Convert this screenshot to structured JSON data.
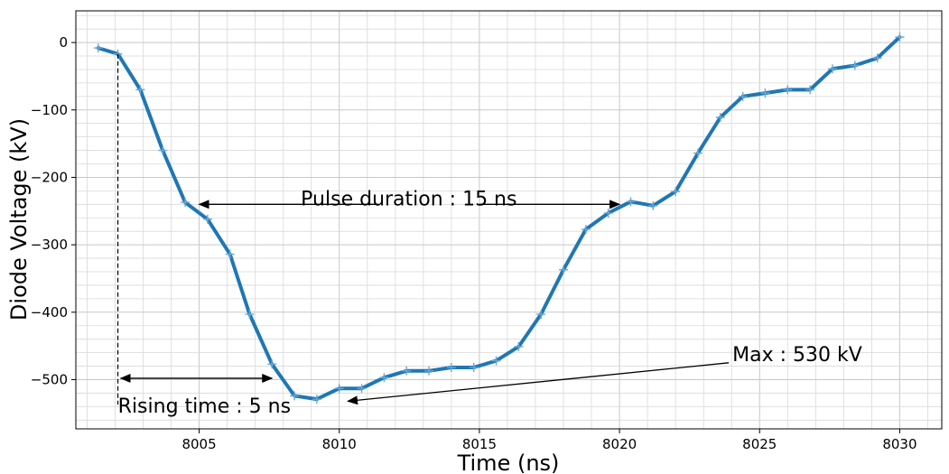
{
  "chart_data": {
    "type": "line",
    "title": "",
    "xlabel": "Time (ns)",
    "ylabel": "Diode Voltage (kV)",
    "xlim": [
      8000.6,
      8031.5
    ],
    "ylim": [
      -573,
      47
    ],
    "xticks": [
      8005,
      8010,
      8015,
      8020,
      8025,
      8030
    ],
    "yticks": [
      0,
      -100,
      -200,
      -300,
      -400,
      -500
    ],
    "grid": true,
    "series_color": "#1f77b4",
    "series": [
      {
        "x": [
          8001.4,
          8002.1,
          8002.9,
          8003.7,
          8004.5,
          8005.3,
          8006.1,
          8006.8,
          8007.6,
          8008.4,
          8009.2,
          8010.0,
          8010.8,
          8011.6,
          8012.4,
          8013.2,
          8014.0,
          8014.8,
          8015.6,
          8016.4,
          8017.2,
          8018.0,
          8018.8,
          8019.6,
          8020.4,
          8021.2,
          8022.0,
          8022.8,
          8023.6,
          8024.4,
          8025.2,
          8026.0,
          8026.8,
          8027.6,
          8028.4,
          8029.2,
          8030.0
        ],
        "y": [
          -8,
          -17,
          -70,
          -160,
          -237,
          -262,
          -314,
          -403,
          -477,
          -524,
          -529,
          -513,
          -513,
          -497,
          -487,
          -487,
          -482,
          -482,
          -472,
          -451,
          -403,
          -337,
          -277,
          -253,
          -236,
          -242,
          -221,
          -164,
          -111,
          -80,
          -75,
          -70,
          -70,
          -39,
          -34,
          -23,
          8
        ]
      }
    ],
    "annotations": [
      {
        "text": "Pulse duration : 15 ns",
        "from": [
          8011.4,
          -240
        ],
        "to": [
          8005.0,
          -240
        ]
      },
      {
        "text": "",
        "from": [
          8015.0,
          -240
        ],
        "to": [
          8020.0,
          -240
        ]
      },
      {
        "text": "Max : 530 kV",
        "from": [
          8023.9,
          -475
        ],
        "to": [
          8010.3,
          -532
        ]
      },
      {
        "text": "Rising time : 5 ns",
        "arrow": "both",
        "from": [
          8002.2,
          -498
        ],
        "to": [
          8007.6,
          -498
        ]
      },
      {
        "text": "",
        "type": "vline-dashed",
        "x": 8002.1,
        "from_y": -17,
        "to_y": -537
      }
    ]
  }
}
